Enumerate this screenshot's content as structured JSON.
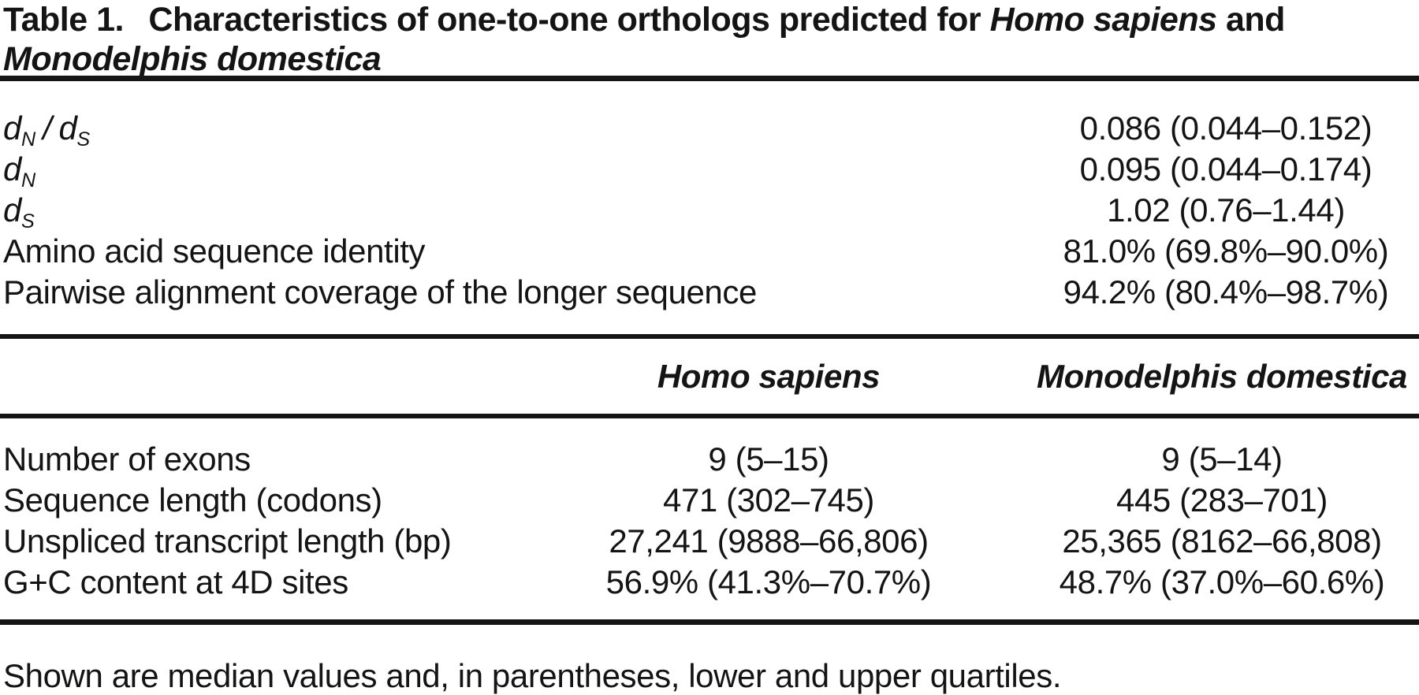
{
  "title": {
    "label": "Table 1.",
    "rest": "Characteristics of one-to-one orthologs predicted for",
    "species1": "Homo sapiens",
    "conjunction": "and",
    "line2_species": "Monodelphis domestica"
  },
  "summary_rows": [
    {
      "label_parts": [
        {
          "t": "d",
          "i": true
        },
        {
          "t": "N",
          "s": true
        },
        {
          "t": "/",
          "i": true,
          "sl": true
        },
        {
          "t": "d",
          "i": true
        },
        {
          "t": "S",
          "s": true
        }
      ],
      "value": "0.086 (0.044–0.152)"
    },
    {
      "label_parts": [
        {
          "t": "d",
          "i": true
        },
        {
          "t": "N",
          "s": true
        }
      ],
      "value": "0.095 (0.044–0.174)"
    },
    {
      "label_parts": [
        {
          "t": "d",
          "i": true
        },
        {
          "t": "S",
          "s": true
        }
      ],
      "value": "1.02 (0.76–1.44)"
    },
    {
      "label_parts": [
        {
          "t": "Amino acid sequence identity"
        }
      ],
      "value": "81.0% (69.8%–90.0%)"
    },
    {
      "label_parts": [
        {
          "t": "Pairwise alignment coverage of the longer sequence"
        }
      ],
      "value": "94.2% (80.4%–98.7%)"
    }
  ],
  "column_headers": {
    "col1": "Homo sapiens",
    "col2": "Monodelphis domestica"
  },
  "species_rows": [
    {
      "label": "Number of exons",
      "homo_sapiens": "9 (5–15)",
      "monodelphis_domestica": "9 (5–14)"
    },
    {
      "label": "Sequence length (codons)",
      "homo_sapiens": "471 (302–745)",
      "monodelphis_domestica": "445 (283–701)"
    },
    {
      "label": "Unspliced transcript length (bp)",
      "homo_sapiens": "27,241 (9888–66,806)",
      "monodelphis_domestica": "25,365 (8162–66,808)"
    },
    {
      "label": "G+C content at 4D sites",
      "homo_sapiens": "56.9% (41.3%–70.7%)",
      "monodelphis_domestica": "48.7% (37.0%–60.6%)"
    }
  ],
  "footnote": "Shown are median values and, in parentheses, lower and upper quartiles.",
  "colors": {
    "background": "#ffffff",
    "text": "#141414",
    "rule": "#151515"
  }
}
